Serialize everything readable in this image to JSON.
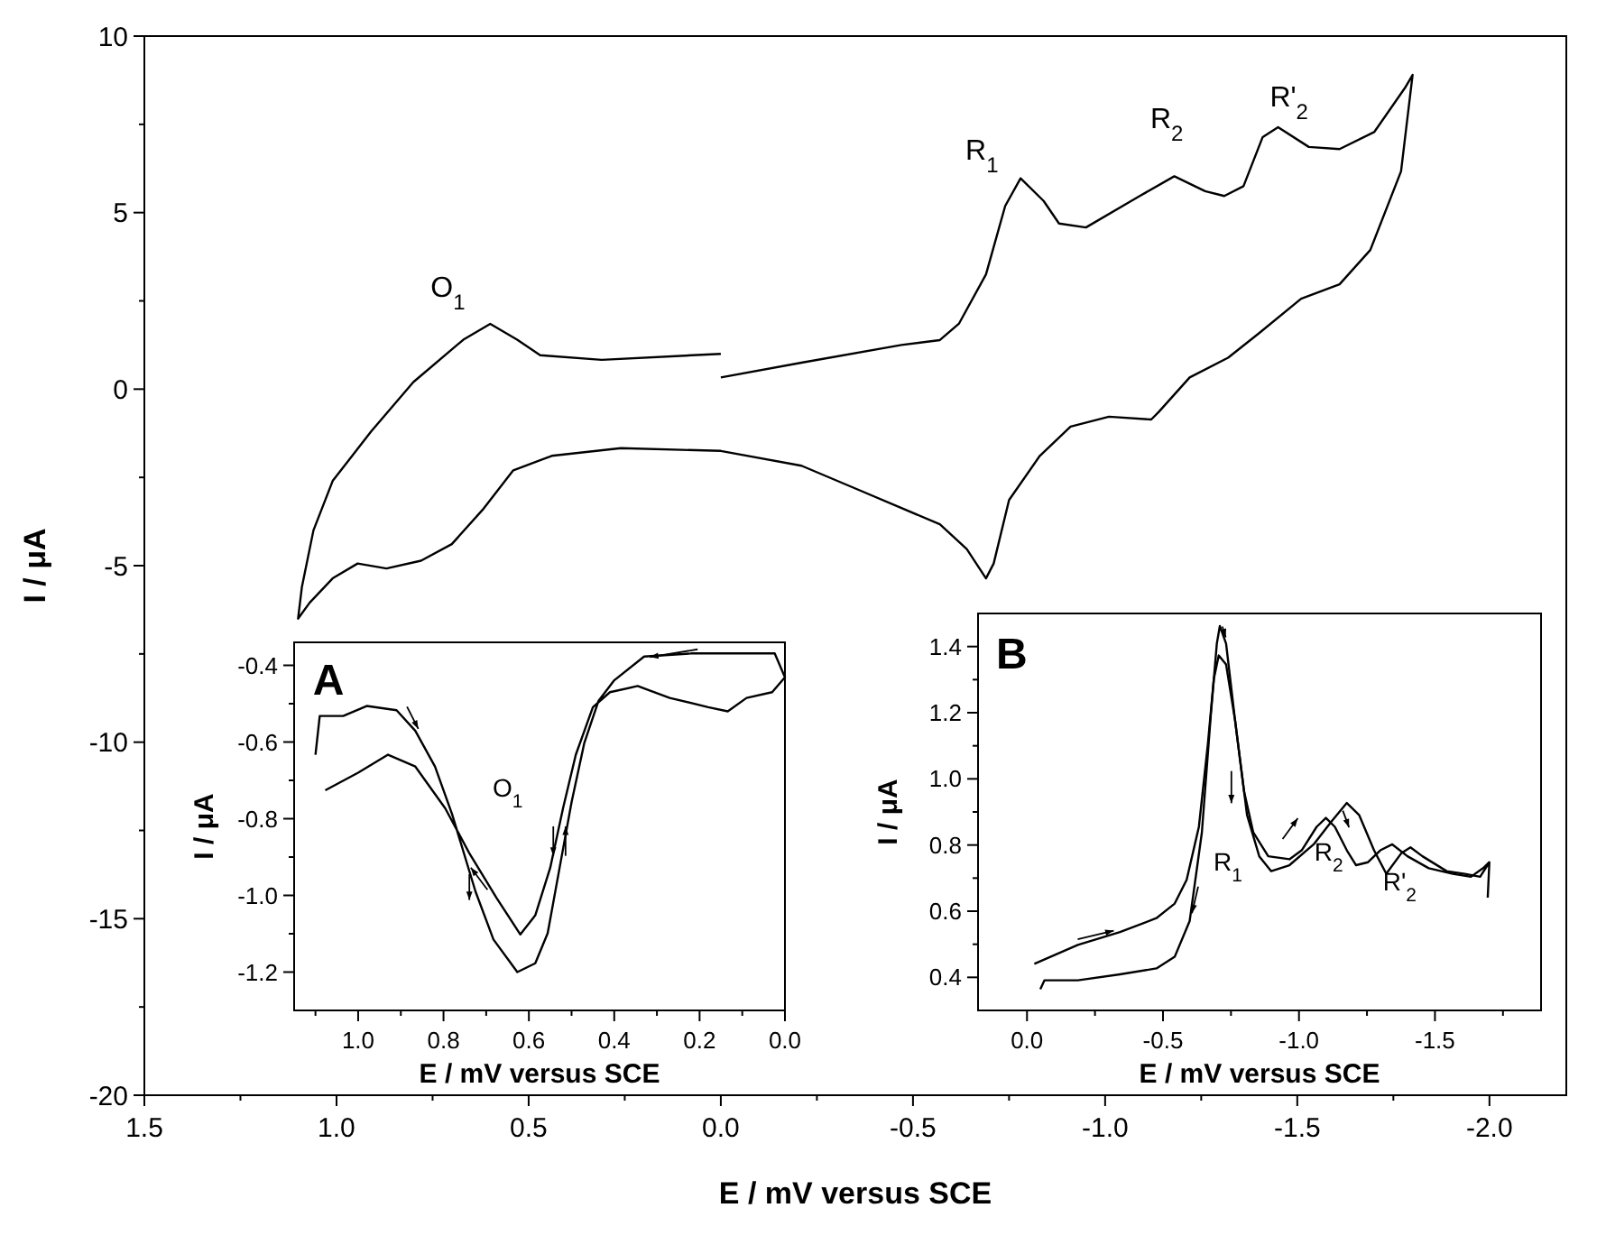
{
  "chart_data": [
    {
      "type": "line",
      "xlabel": "E / mV versus SCE",
      "ylabel": "I / μA",
      "xlim": [
        1.5,
        -2.2
      ],
      "ylim": [
        -20,
        10
      ],
      "xticks": [
        {
          "value": 1.5,
          "label": "1.5"
        },
        {
          "value": 1.25,
          "label": null
        },
        {
          "value": 1,
          "label": "1.0"
        },
        {
          "value": 0.75,
          "label": null
        },
        {
          "value": 0.5,
          "label": "0.5"
        },
        {
          "value": 0.25,
          "label": null
        },
        {
          "value": 0,
          "label": "0.0"
        },
        {
          "value": -0.25,
          "label": null
        },
        {
          "value": -0.5,
          "label": "-0.5"
        },
        {
          "value": -0.75,
          "label": null
        },
        {
          "value": -1,
          "label": "-1.0"
        },
        {
          "value": -1.25,
          "label": null
        },
        {
          "value": -1.5,
          "label": "-1.5"
        },
        {
          "value": -1.75,
          "label": null
        },
        {
          "value": -2,
          "label": "-2.0"
        }
      ],
      "yticks": [
        -20,
        {
          "value": -17.5,
          "label": null
        },
        -15,
        {
          "value": -12.5,
          "label": null
        },
        -10,
        {
          "value": -7.5,
          "label": null
        },
        -5,
        {
          "value": -2.5,
          "label": null
        },
        0,
        {
          "value": 2.5,
          "label": null
        },
        5,
        {
          "value": 7.5,
          "label": null
        },
        10
      ],
      "annotations": [
        "O$_{1}$",
        "R$_{1}$",
        "R$_{2}$",
        "R'$_{2}$"
      ],
      "series": [
        {
          "color": "#000000",
          "x": [
            0.0,
            0.31,
            0.47,
            0.53,
            0.6,
            0.67,
            0.8,
            0.91,
            1.01,
            1.06,
            1.09,
            1.1,
            1.07,
            1.01,
            0.945,
            0.87,
            0.78,
            0.7,
            0.62,
            0.54,
            0.44,
            0.26,
            0.0,
            -0.21,
            -0.36,
            -0.57,
            -0.64,
            -0.69,
            -0.71,
            -0.75,
            -0.83,
            -0.91,
            -1.01,
            -1.12,
            -1.14,
            -1.22,
            -1.32,
            -1.4,
            -1.51,
            -1.61,
            -1.69,
            -1.77,
            -1.8,
            -1.78,
            -1.7,
            -1.61,
            -1.53,
            -1.45,
            -1.41,
            -1.36,
            -1.31,
            -1.26,
            -1.18,
            -1.09,
            -0.95,
            -0.88,
            -0.84,
            -0.78,
            -0.74,
            -0.69,
            -0.62,
            -0.57,
            -0.47,
            -0.21,
            0.0
          ],
          "values": [
            1.0,
            0.83,
            0.96,
            1.4,
            1.85,
            1.4,
            0.2,
            -1.2,
            -2.6,
            -4.0,
            -5.6,
            -6.5,
            -6.05,
            -5.36,
            -4.94,
            -5.08,
            -4.86,
            -4.39,
            -3.42,
            -2.3,
            -1.89,
            -1.67,
            -1.75,
            -2.17,
            -2.86,
            -3.83,
            -4.53,
            -5.36,
            -4.94,
            -3.14,
            -1.89,
            -1.06,
            -0.78,
            -0.86,
            -0.64,
            0.33,
            0.89,
            1.58,
            2.56,
            2.97,
            3.94,
            6.17,
            8.9,
            8.53,
            7.28,
            6.8,
            6.86,
            7.42,
            7.14,
            5.75,
            5.47,
            5.61,
            6.03,
            5.47,
            4.58,
            4.69,
            5.33,
            5.97,
            5.19,
            3.25,
            1.86,
            1.39,
            1.25,
            0.75,
            0.33
          ]
        }
      ]
    },
    {
      "type": "line",
      "xlabel": "E / mV versus SCE",
      "ylabel": "I / μA",
      "xlim": [
        1.15,
        0
      ],
      "ylim": [
        -1.3,
        -0.34
      ],
      "xticks": [
        {
          "value": 1.1,
          "label": null
        },
        {
          "value": 1,
          "label": "1.0"
        },
        {
          "value": 0.9,
          "label": null
        },
        0.8,
        {
          "value": 0.7,
          "label": null
        },
        0.6,
        {
          "value": 0.5,
          "label": null
        },
        0.4,
        {
          "value": 0.3,
          "label": null
        },
        0.2,
        {
          "value": 0.1,
          "label": null
        },
        {
          "value": 0,
          "label": "0.0"
        }
      ],
      "yticks": [
        -0.4,
        {
          "value": -0.5,
          "label": null
        },
        -0.6,
        {
          "value": -0.7,
          "label": null
        },
        -0.8,
        {
          "value": -0.9,
          "label": null
        },
        {
          "value": -1,
          "label": "-1.0"
        },
        {
          "value": -1.1,
          "label": null
        },
        -1.2
      ],
      "annotations": [
        "A",
        "O$_{1}$"
      ],
      "series": [
        {
          "color": "#000000",
          "x": [
            1.1,
            1.09,
            1.035,
            0.98,
            0.91,
            0.866,
            0.82,
            0.78,
            0.725,
            0.683,
            0.627,
            0.585,
            0.556,
            0.528,
            0.5,
            0.47,
            0.437,
            0.4,
            0.33,
            0.22,
            0.077,
            0.024,
            0.0,
            0.03,
            0.09,
            0.134,
            0.18,
            0.27,
            0.345,
            0.41,
            0.45,
            0.49,
            0.52,
            0.55,
            0.585,
            0.62,
            0.676,
            0.74,
            0.796,
            0.866,
            0.93,
            1.0,
            1.077
          ],
          "values": [
            -0.633,
            -0.532,
            -0.532,
            -0.506,
            -0.517,
            -0.571,
            -0.664,
            -0.788,
            -0.99,
            -1.115,
            -1.2,
            -1.177,
            -1.099,
            -0.928,
            -0.757,
            -0.602,
            -0.493,
            -0.439,
            -0.377,
            -0.369,
            -0.369,
            -0.369,
            -0.431,
            -0.47,
            -0.485,
            -0.52,
            -0.509,
            -0.485,
            -0.454,
            -0.47,
            -0.509,
            -0.633,
            -0.773,
            -0.928,
            -1.052,
            -1.102,
            -1.006,
            -0.889,
            -0.773,
            -0.664,
            -0.633,
            -0.68,
            -0.726
          ]
        }
      ]
    },
    {
      "type": "line",
      "xlabel": "E / mV versus SCE",
      "ylabel": "I / μA",
      "xlim": [
        0.18,
        -1.89
      ],
      "ylim": [
        0.3,
        1.5
      ],
      "xticks": [
        {
          "value": 0,
          "label": "0.0"
        },
        {
          "value": -0.25,
          "label": null
        },
        -0.5,
        {
          "value": -0.75,
          "label": null
        },
        {
          "value": -1,
          "label": "-1.0"
        },
        {
          "value": -1.25,
          "label": null
        },
        -1.5,
        {
          "value": -1.75,
          "label": null
        }
      ],
      "yticks": [
        0.4,
        {
          "value": 0.5,
          "label": null
        },
        0.6,
        {
          "value": 0.7,
          "label": null
        },
        0.8,
        {
          "value": 0.9,
          "label": null
        },
        {
          "value": 1,
          "label": "1.0"
        },
        {
          "value": 1.1,
          "label": null
        },
        1.2,
        {
          "value": 1.3,
          "label": null
        },
        1.4
      ],
      "annotations": [
        "B",
        "R$_{1}$",
        "R$_{2}$",
        "R'$_{2}$"
      ],
      "series": [
        {
          "color": "#000000",
          "x": [
            -0.027,
            -0.187,
            -0.342,
            -0.476,
            -0.543,
            -0.587,
            -0.632,
            -0.665,
            -0.687,
            -0.705,
            -0.732,
            -0.765,
            -0.798,
            -0.832,
            -0.887,
            -0.965,
            -1.01,
            -1.065,
            -1.099,
            -1.132,
            -1.176,
            -1.21,
            -1.254,
            -1.299,
            -1.343,
            -1.399,
            -1.477,
            -1.566,
            -1.632,
            -1.677,
            -1.7
          ],
          "values": [
            0.441,
            0.498,
            0.537,
            0.579,
            0.623,
            0.695,
            0.855,
            1.105,
            1.302,
            1.373,
            1.346,
            1.177,
            0.963,
            0.838,
            0.766,
            0.757,
            0.784,
            0.855,
            0.882,
            0.855,
            0.784,
            0.739,
            0.748,
            0.784,
            0.802,
            0.766,
            0.73,
            0.713,
            0.704,
            0.73,
            0.748
          ]
        },
        {
          "color": "#000000",
          "x": [
            -0.049,
            -0.064,
            -0.187,
            -0.342,
            -0.476,
            -0.543,
            -0.598,
            -0.643,
            -0.676,
            -0.698,
            -0.709,
            -0.732,
            -0.765,
            -0.809,
            -0.854,
            -0.898,
            -0.965,
            -1.054,
            -1.121,
            -1.176,
            -1.221,
            -1.276,
            -1.321,
            -1.376,
            -1.41,
            -1.454,
            -1.543,
            -1.61,
            -1.666,
            -1.7,
            -1.694
          ],
          "values": [
            0.364,
            0.391,
            0.391,
            0.409,
            0.427,
            0.462,
            0.57,
            0.838,
            1.195,
            1.409,
            1.462,
            1.409,
            1.177,
            0.891,
            0.766,
            0.721,
            0.739,
            0.802,
            0.873,
            0.927,
            0.891,
            0.784,
            0.713,
            0.775,
            0.793,
            0.766,
            0.721,
            0.713,
            0.704,
            0.748,
            0.641
          ]
        }
      ]
    }
  ]
}
